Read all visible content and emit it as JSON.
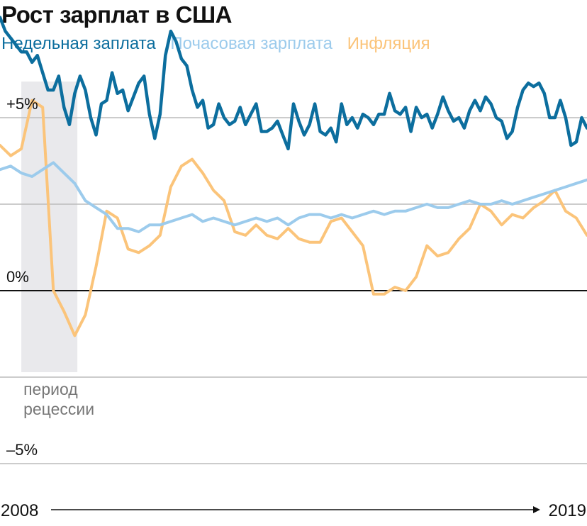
{
  "chart_data": {
    "type": "line",
    "title": "Рост зарплат в США",
    "x_start_label": "2008",
    "x_end_label": "2019",
    "x_range": [
      2008,
      2019
    ],
    "ylim": [
      -5,
      6
    ],
    "yticks": [
      {
        "value": 5,
        "label": "+5%"
      },
      {
        "value": 0,
        "label": "0%"
      },
      {
        "value": -5,
        "label": "–5%"
      }
    ],
    "recession": {
      "start": 2008.4,
      "end": 2009.45,
      "label_line1": "период",
      "label_line2": "рецессии"
    },
    "series": [
      {
        "name": "Недельная заплата",
        "color": "#0c6e9e",
        "x": [
          2008.0,
          2008.1,
          2008.2,
          2008.3,
          2008.4,
          2008.5,
          2008.6,
          2008.7,
          2008.8,
          2008.9,
          2009.0,
          2009.1,
          2009.2,
          2009.3,
          2009.4,
          2009.5,
          2009.6,
          2009.7,
          2009.8,
          2009.9,
          2010.0,
          2010.1,
          2010.2,
          2010.3,
          2010.4,
          2010.5,
          2010.6,
          2010.7,
          2010.8,
          2010.9,
          2011.0,
          2011.1,
          2011.2,
          2011.3,
          2011.4,
          2011.5,
          2011.6,
          2011.7,
          2011.8,
          2011.9,
          2012.0,
          2012.1,
          2012.2,
          2012.3,
          2012.4,
          2012.5,
          2012.6,
          2012.7,
          2012.8,
          2012.9,
          2013.0,
          2013.1,
          2013.2,
          2013.3,
          2013.4,
          2013.5,
          2013.6,
          2013.7,
          2013.8,
          2013.9,
          2014.0,
          2014.1,
          2014.2,
          2014.3,
          2014.4,
          2014.5,
          2014.6,
          2014.7,
          2014.8,
          2014.9,
          2015.0,
          2015.1,
          2015.2,
          2015.3,
          2015.4,
          2015.5,
          2015.6,
          2015.7,
          2015.8,
          2015.9,
          2016.0,
          2016.1,
          2016.2,
          2016.3,
          2016.4,
          2016.5,
          2016.6,
          2016.7,
          2016.8,
          2016.9,
          2017.0,
          2017.1,
          2017.2,
          2017.3,
          2017.4,
          2017.5,
          2017.6,
          2017.7,
          2017.8,
          2017.9,
          2018.0,
          2018.1,
          2018.2,
          2018.3,
          2018.4,
          2018.5,
          2018.6,
          2018.7,
          2018.8,
          2018.9,
          2019.0
        ],
        "values": [
          7.9,
          7.5,
          7.3,
          7.1,
          6.9,
          6.9,
          6.6,
          6.8,
          6.3,
          5.8,
          5.8,
          6.2,
          5.3,
          4.8,
          5.7,
          6.2,
          5.8,
          5.0,
          4.5,
          5.4,
          5.5,
          6.3,
          5.7,
          5.8,
          5.2,
          5.6,
          6.0,
          6.2,
          5.1,
          4.4,
          5.1,
          6.8,
          7.5,
          7.2,
          6.7,
          6.5,
          5.8,
          5.3,
          5.5,
          4.7,
          4.8,
          5.4,
          5.0,
          4.8,
          4.9,
          5.3,
          4.8,
          5.1,
          5.4,
          4.6,
          4.6,
          4.7,
          4.9,
          4.5,
          4.1,
          5.4,
          4.9,
          4.5,
          4.8,
          5.4,
          4.6,
          4.5,
          4.7,
          4.3,
          5.4,
          4.8,
          5.0,
          4.7,
          5.1,
          5.0,
          4.8,
          5.1,
          5.1,
          5.7,
          5.2,
          5.1,
          5.3,
          4.6,
          5.3,
          5.0,
          5.1,
          4.7,
          5.1,
          5.6,
          5.2,
          4.9,
          5.0,
          4.7,
          5.2,
          5.5,
          5.2,
          5.6,
          5.4,
          5.0,
          4.9,
          4.4,
          4.6,
          5.3,
          5.8,
          6.0,
          5.9,
          6.0,
          5.7,
          5.0,
          5.0,
          5.5,
          5.0,
          4.2,
          4.3,
          5.0,
          4.7
        ]
      },
      {
        "name": "Почасовая зарплата",
        "color": "#9ccbec",
        "x": [
          2008.0,
          2008.2,
          2008.4,
          2008.6,
          2008.8,
          2009.0,
          2009.2,
          2009.4,
          2009.6,
          2009.8,
          2010.0,
          2010.2,
          2010.4,
          2010.6,
          2010.8,
          2011.0,
          2011.2,
          2011.4,
          2011.6,
          2011.8,
          2012.0,
          2012.2,
          2012.4,
          2012.6,
          2012.8,
          2013.0,
          2013.2,
          2013.4,
          2013.6,
          2013.8,
          2014.0,
          2014.2,
          2014.4,
          2014.6,
          2014.8,
          2015.0,
          2015.2,
          2015.4,
          2015.6,
          2015.8,
          2016.0,
          2016.2,
          2016.4,
          2016.6,
          2016.8,
          2017.0,
          2017.2,
          2017.4,
          2017.6,
          2017.8,
          2018.0,
          2018.2,
          2018.4,
          2018.6,
          2018.8,
          2019.0
        ],
        "values": [
          3.5,
          3.6,
          3.4,
          3.3,
          3.5,
          3.7,
          3.4,
          3.1,
          2.6,
          2.4,
          2.2,
          1.8,
          1.8,
          1.7,
          1.9,
          1.9,
          2.0,
          2.1,
          2.2,
          2.0,
          2.1,
          2.0,
          1.9,
          2.0,
          2.1,
          2.0,
          2.1,
          1.9,
          2.1,
          2.2,
          2.2,
          2.1,
          2.2,
          2.1,
          2.2,
          2.3,
          2.2,
          2.3,
          2.3,
          2.4,
          2.5,
          2.4,
          2.4,
          2.5,
          2.6,
          2.5,
          2.5,
          2.6,
          2.5,
          2.6,
          2.7,
          2.8,
          2.9,
          3.0,
          3.1,
          3.2
        ]
      },
      {
        "name": "Инфляция",
        "color": "#fbc47a",
        "x": [
          2008.0,
          2008.2,
          2008.4,
          2008.6,
          2008.8,
          2009.0,
          2009.2,
          2009.4,
          2009.6,
          2009.8,
          2010.0,
          2010.2,
          2010.4,
          2010.6,
          2010.8,
          2011.0,
          2011.2,
          2011.4,
          2011.6,
          2011.8,
          2012.0,
          2012.2,
          2012.4,
          2012.6,
          2012.8,
          2013.0,
          2013.2,
          2013.4,
          2013.6,
          2013.8,
          2014.0,
          2014.2,
          2014.4,
          2014.6,
          2014.8,
          2015.0,
          2015.2,
          2015.4,
          2015.6,
          2015.8,
          2016.0,
          2016.2,
          2016.4,
          2016.6,
          2016.8,
          2017.0,
          2017.2,
          2017.4,
          2017.6,
          2017.8,
          2018.0,
          2018.2,
          2018.4,
          2018.6,
          2018.8,
          2019.0
        ],
        "values": [
          4.2,
          3.9,
          4.1,
          5.5,
          5.3,
          0.0,
          -0.6,
          -1.3,
          -0.7,
          0.7,
          2.3,
          2.1,
          1.2,
          1.1,
          1.3,
          1.6,
          3.0,
          3.6,
          3.8,
          3.4,
          2.9,
          2.6,
          1.7,
          1.6,
          1.9,
          1.6,
          1.5,
          1.8,
          1.5,
          1.4,
          1.4,
          2.0,
          2.1,
          1.7,
          1.3,
          -0.1,
          -0.1,
          0.1,
          0.0,
          0.4,
          1.3,
          1.0,
          1.1,
          1.5,
          1.8,
          2.5,
          2.3,
          1.9,
          2.2,
          2.1,
          2.4,
          2.6,
          2.9,
          2.3,
          2.1,
          1.6
        ]
      }
    ]
  }
}
